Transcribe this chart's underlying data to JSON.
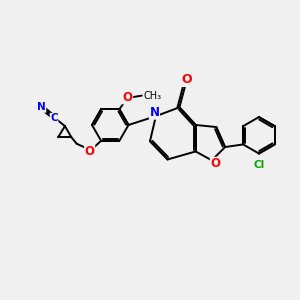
{
  "bg_color": "#f0f0f0",
  "bond_color": "#000000",
  "bond_width": 1.4,
  "figsize": [
    3.0,
    3.0
  ],
  "dpi": 100,
  "atom_colors": {
    "N": "#0000ff",
    "O": "#ff0000",
    "Cl": "#00aa00",
    "C": "#000000"
  }
}
